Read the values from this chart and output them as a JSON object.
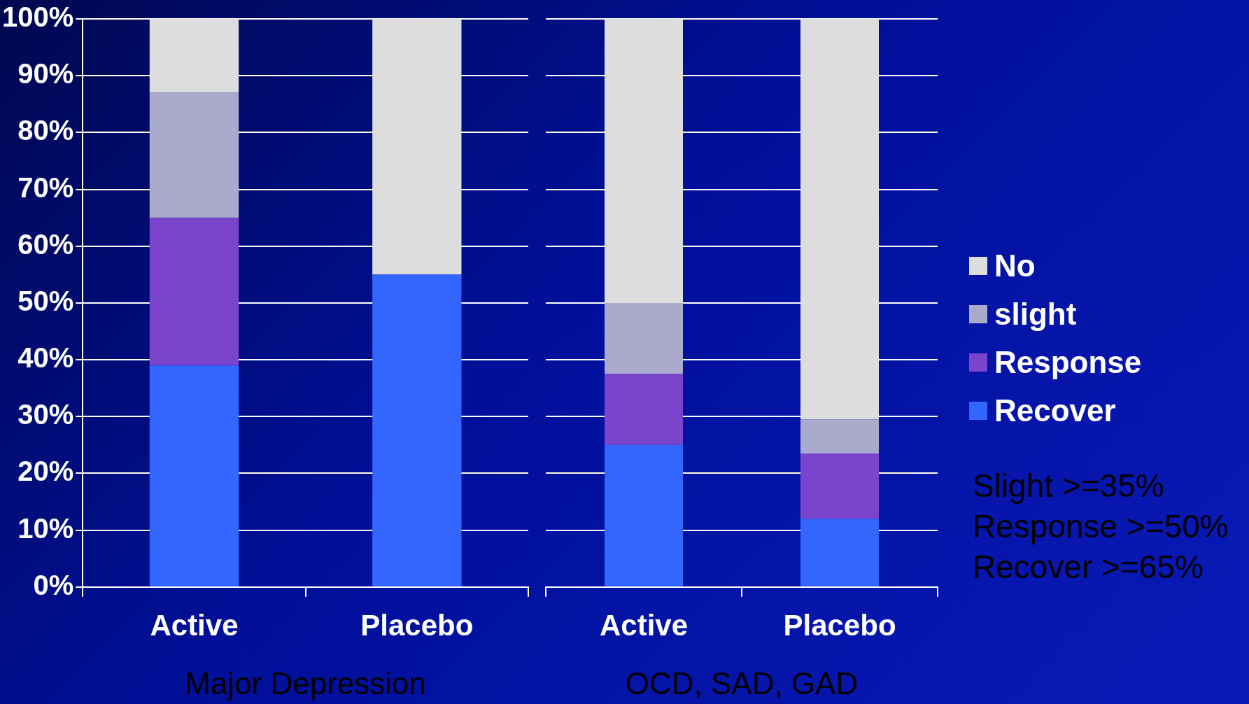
{
  "chart_data": [
    {
      "type": "bar",
      "stacked": true,
      "categories": [
        "Active",
        "Placebo"
      ],
      "xlabel": "Major Depression",
      "ylim": [
        0,
        100
      ],
      "yticks": [
        {
          "value": 0,
          "label": "0%"
        },
        {
          "value": 10,
          "label": "10%"
        },
        {
          "value": 20,
          "label": "20%"
        },
        {
          "value": 30,
          "label": "30%"
        },
        {
          "value": 40,
          "label": "40%"
        },
        {
          "value": 50,
          "label": "50%"
        },
        {
          "value": 60,
          "label": "60%"
        },
        {
          "value": 70,
          "label": "70%"
        },
        {
          "value": 80,
          "label": "80%"
        },
        {
          "value": 90,
          "label": "90%"
        },
        {
          "value": 100,
          "label": "100%"
        }
      ],
      "grid": "y",
      "legend": false,
      "series": [
        {
          "color": "#3366ff",
          "values": [
            39,
            55
          ]
        },
        {
          "color": "#7b44cc",
          "values": [
            26,
            0
          ]
        },
        {
          "color": "#aaaacc",
          "values": [
            22,
            0
          ]
        },
        {
          "color": "#dddddd",
          "values": [
            13,
            45
          ]
        }
      ]
    },
    {
      "type": "bar",
      "stacked": true,
      "categories": [
        "Active",
        "Placebo"
      ],
      "xlabel": "OCD, SAD, GAD",
      "ylim": [
        0,
        100
      ],
      "yticks": [
        {
          "value": 0,
          "label": null
        },
        {
          "value": 10,
          "label": null
        },
        {
          "value": 20,
          "label": null
        },
        {
          "value": 30,
          "label": null
        },
        {
          "value": 40,
          "label": null
        },
        {
          "value": 50,
          "label": null
        },
        {
          "value": 60,
          "label": null
        },
        {
          "value": 70,
          "label": null
        },
        {
          "value": 80,
          "label": null
        },
        {
          "value": 90,
          "label": null
        },
        {
          "value": 100,
          "label": null
        }
      ],
      "grid": "y",
      "legend": "right",
      "tick_labels": "x",
      "series": [
        {
          "name": "Recover",
          "color": "#3366ff",
          "values": [
            25,
            12
          ]
        },
        {
          "name": "Response",
          "color": "#7b44cc",
          "values": [
            12.5,
            11.5
          ]
        },
        {
          "name": "slight",
          "color": "#aaaacc",
          "values": [
            12.5,
            6
          ]
        },
        {
          "name": "No",
          "color": "#dddddd",
          "values": [
            50,
            70.5
          ]
        }
      ],
      "annotations": [
        "Slight >=35%",
        "Response >=50%",
        "Recover >=65%"
      ]
    }
  ]
}
